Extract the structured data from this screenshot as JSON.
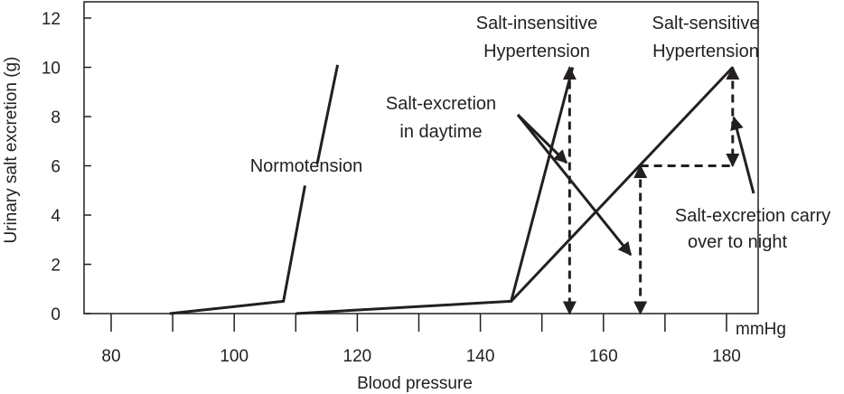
{
  "chart_data": {
    "type": "line",
    "xlabel": "Blood pressure",
    "ylabel": "Urinary salt excretion (g)",
    "x_unit": "mmHg",
    "xlim": [
      70,
      185
    ],
    "ylim": [
      0,
      12.5
    ],
    "xticks": [
      80,
      90,
      100,
      110,
      120,
      130,
      140,
      150,
      160,
      170,
      180
    ],
    "xtick_labels": [
      "80",
      "",
      "100",
      "",
      "120",
      "",
      "140",
      "",
      "160",
      "",
      "180"
    ],
    "yticks": [
      0,
      2,
      4,
      6,
      8,
      10,
      12
    ],
    "ytick_labels": [
      "0",
      "2",
      "4",
      "6",
      "8",
      "10",
      "12"
    ],
    "grid": false,
    "series": [
      {
        "name": "Normotension",
        "points": [
          [
            89.5,
            0
          ],
          [
            108,
            0.5
          ],
          [
            111.5,
            5.2
          ]
        ],
        "segments": [
          [
            [
              113.5,
              6.1
            ],
            [
              116.8,
              10.1
            ]
          ]
        ]
      },
      {
        "name": "Salt-insensitive Hypertension",
        "points": [
          [
            110,
            0
          ],
          [
            145,
            0.5
          ],
          [
            155,
            10
          ]
        ]
      },
      {
        "name": "Salt-sensitive Hypertension",
        "points": [
          [
            145,
            0.5
          ],
          [
            181,
            10
          ]
        ]
      }
    ],
    "annotations": [
      {
        "text": [
          "Salt-insensitive",
          "Hypertension"
        ]
      },
      {
        "text": [
          "Salt-sensitive",
          "Hypertension"
        ]
      },
      {
        "text": [
          "Normotension"
        ]
      },
      {
        "text": [
          "Salt-excretion",
          "in daytime"
        ]
      },
      {
        "text": [
          "Salt-excretion carry",
          "over to night"
        ]
      }
    ],
    "markers": [
      {
        "kind": "dashed-down-arrow",
        "x": 154.5,
        "y_from": 10,
        "y_to": 0
      },
      {
        "kind": "dashed-down-arrow",
        "x": 166,
        "y_from": 6,
        "y_to": 0
      },
      {
        "kind": "dashed-down-arrow",
        "x": 181,
        "y_from": 10,
        "y_to": 6
      },
      {
        "kind": "dashed-horizontal",
        "x_from": 166,
        "x_to": 181,
        "y": 6
      }
    ]
  }
}
